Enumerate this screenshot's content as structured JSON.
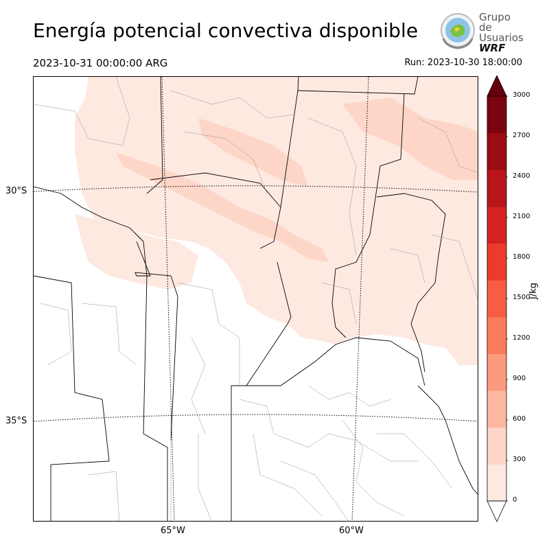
{
  "header": {
    "title": "Energía potencial convectiva disponible",
    "valid_time": "2023-10-31 00:00:00 ARG",
    "run_time": "Run: 2023-10-30 18:00:00"
  },
  "logo": {
    "line1": "Grupo de",
    "line2": "Usuarios",
    "line3": "WRF"
  },
  "map": {
    "lat_labels": [
      "30°S",
      "35°S"
    ],
    "lon_labels": [
      "65°W",
      "60°W"
    ],
    "border_color": "#000000",
    "district_line_color": "#888888"
  },
  "colorbar": {
    "unit": "J/kg",
    "ticks": [
      "0",
      "300",
      "600",
      "900",
      "1200",
      "1500",
      "1800",
      "2100",
      "2400",
      "2700",
      "3000"
    ],
    "colors": [
      "#fee9e1",
      "#fdd6c8",
      "#fcb8a0",
      "#fc9a7d",
      "#fb7c5c",
      "#f65d42",
      "#ec3b2c",
      "#d52221",
      "#b9161b",
      "#9a0d14",
      "#7a0510"
    ],
    "over_color": "#67000d",
    "under_color": "#ffffff"
  }
}
